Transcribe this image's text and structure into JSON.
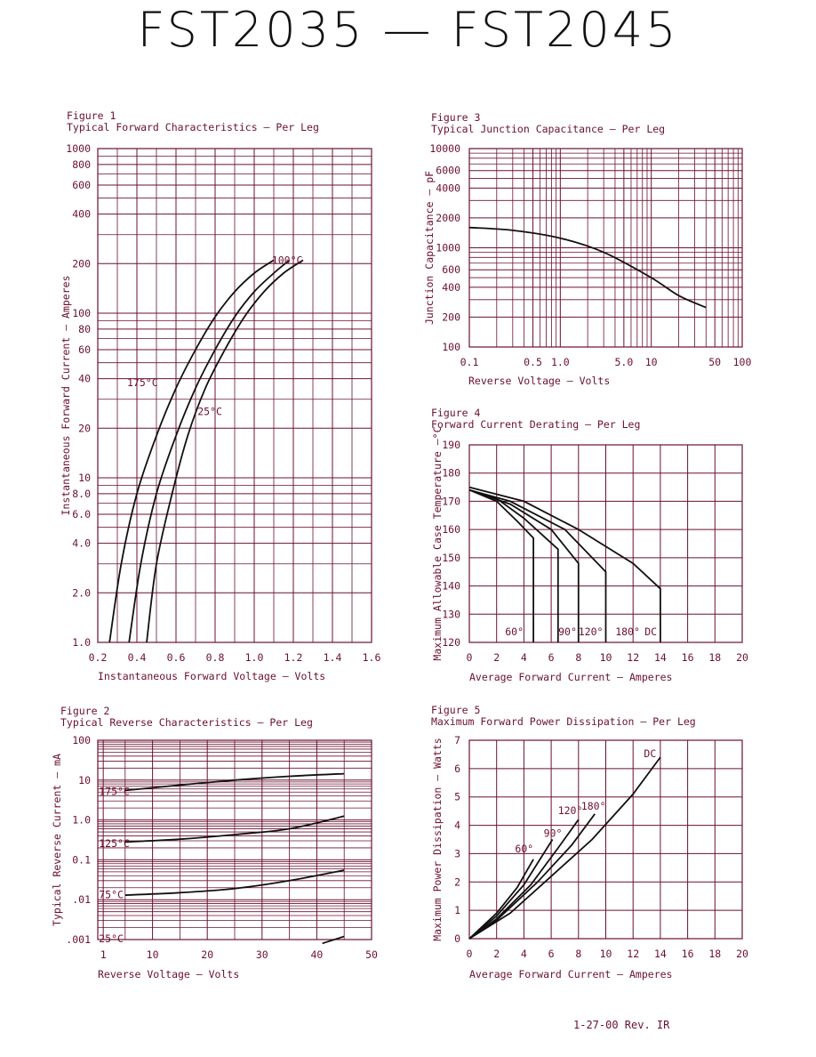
{
  "title": "FST2035  —  FST2045",
  "footer": "1-27-00  Rev. IR",
  "colors": {
    "grid": "#6b1030",
    "curve": "#111111",
    "text": "#6b1030"
  },
  "chart_data": [
    {
      "figure": "Figure 1",
      "title": "Typical Forward Characteristics — Per Leg",
      "type": "line",
      "xlabel": "Instantaneous Forward Voltage — Volts",
      "ylabel": "Instantaneous Forward Current — Amperes",
      "xscale": "linear",
      "yscale": "log",
      "xlim": [
        0.2,
        1.6
      ],
      "ylim": [
        1,
        1000
      ],
      "xticks": [
        0.2,
        0.4,
        0.6,
        0.8,
        1.0,
        1.2,
        1.4,
        1.6
      ],
      "xtick_labels": [
        "0.2",
        "0.4",
        "0.6",
        "0.8",
        "1.0",
        "1.2",
        "1.4",
        "1.6"
      ],
      "yticks": [
        1,
        2,
        4,
        6,
        8,
        10,
        20,
        40,
        60,
        80,
        100,
        200,
        400,
        600,
        800,
        1000
      ],
      "ytick_labels": [
        "1.0",
        "2.0",
        "4.0",
        "6.0",
        "8.0",
        "10",
        "20",
        "40",
        "60",
        "80",
        "100",
        "200",
        "400",
        "600",
        "800",
        "1000"
      ],
      "grid": true,
      "series": [
        {
          "name": "175°C",
          "points": [
            [
              0.26,
              1
            ],
            [
              0.32,
              3
            ],
            [
              0.4,
              8
            ],
            [
              0.5,
              18
            ],
            [
              0.6,
              35
            ],
            [
              0.7,
              60
            ],
            [
              0.8,
              95
            ],
            [
              0.9,
              135
            ],
            [
              1.0,
              175
            ],
            [
              1.1,
              210
            ]
          ]
        },
        {
          "name": "100°C",
          "points": [
            [
              0.36,
              1
            ],
            [
              0.42,
              3
            ],
            [
              0.5,
              8
            ],
            [
              0.6,
              18
            ],
            [
              0.7,
              35
            ],
            [
              0.8,
              60
            ],
            [
              0.9,
              95
            ],
            [
              1.0,
              135
            ],
            [
              1.1,
              175
            ],
            [
              1.18,
              210
            ]
          ]
        },
        {
          "name": "25°C",
          "points": [
            [
              0.45,
              1
            ],
            [
              0.5,
              3
            ],
            [
              0.58,
              8
            ],
            [
              0.66,
              18
            ],
            [
              0.75,
              35
            ],
            [
              0.85,
              60
            ],
            [
              0.95,
              95
            ],
            [
              1.05,
              135
            ],
            [
              1.15,
              175
            ],
            [
              1.25,
              210
            ]
          ]
        }
      ],
      "annotations": [
        "175°C",
        "100°C",
        "25°C"
      ]
    },
    {
      "figure": "Figure 2",
      "title": "Typical Reverse Characteristics — Per Leg",
      "type": "line",
      "xlabel": "Reverse Voltage — Volts",
      "ylabel": "Typical Reverse Current — mA",
      "xscale": "linear",
      "yscale": "log",
      "xlim": [
        0,
        50
      ],
      "ylim": [
        0.001,
        100
      ],
      "xticks": [
        1,
        10,
        20,
        30,
        40,
        50
      ],
      "xtick_labels": [
        "1",
        "10",
        "20",
        "30",
        "40",
        "50"
      ],
      "yticks": [
        0.001,
        0.01,
        0.1,
        1,
        10,
        100
      ],
      "ytick_labels": [
        ".001",
        ".01",
        "0.1",
        "1.0",
        "10",
        "100"
      ],
      "grid": true,
      "series": [
        {
          "name": "175°C",
          "points": [
            [
              5,
              5.5
            ],
            [
              15,
              7.5
            ],
            [
              25,
              10
            ],
            [
              35,
              12.5
            ],
            [
              45,
              14.5
            ]
          ]
        },
        {
          "name": "125°C",
          "points": [
            [
              5,
              0.28
            ],
            [
              15,
              0.33
            ],
            [
              25,
              0.43
            ],
            [
              35,
              0.6
            ],
            [
              45,
              1.25
            ]
          ]
        },
        {
          "name": "75°C",
          "points": [
            [
              5,
              0.013
            ],
            [
              15,
              0.015
            ],
            [
              25,
              0.019
            ],
            [
              35,
              0.03
            ],
            [
              45,
              0.055
            ]
          ]
        },
        {
          "name": "25°C",
          "points": [
            [
              41,
              0.0008
            ],
            [
              45,
              0.0012
            ]
          ]
        }
      ],
      "annotations": [
        "175°C",
        "125°C",
        "75°C",
        "25°C"
      ]
    },
    {
      "figure": "Figure 3",
      "title": "Typical Junction Capacitance — Per Leg",
      "type": "line",
      "xlabel": "Reverse Voltage — Volts",
      "ylabel": "Junction Capacitance — pF",
      "xscale": "log",
      "yscale": "log",
      "xlim": [
        0.1,
        100
      ],
      "ylim": [
        100,
        10000
      ],
      "xticks": [
        0.1,
        0.5,
        1.0,
        5.0,
        10,
        50,
        100
      ],
      "xtick_labels": [
        "0.1",
        "0.5",
        "1.0",
        "5.0",
        "10",
        "50",
        "100"
      ],
      "yticks": [
        100,
        200,
        400,
        600,
        1000,
        2000,
        4000,
        6000,
        10000
      ],
      "ytick_labels": [
        "100",
        "200",
        "400",
        "600",
        "1000",
        "2000",
        "4000",
        "6000",
        "10000"
      ],
      "grid": true,
      "series": [
        {
          "name": "",
          "points": [
            [
              0.1,
              1600
            ],
            [
              0.3,
              1500
            ],
            [
              1,
              1250
            ],
            [
              3,
              900
            ],
            [
              10,
              500
            ],
            [
              20,
              330
            ],
            [
              40,
              250
            ]
          ]
        }
      ]
    },
    {
      "figure": "Figure 4",
      "title": "Forward Current Derating — Per Leg",
      "type": "line",
      "xlabel": "Average Forward Current — Amperes",
      "ylabel": "Maximum Allowable Case Temperature —°C",
      "xscale": "linear",
      "yscale": "linear",
      "xlim": [
        0,
        20
      ],
      "ylim": [
        120,
        190
      ],
      "xticks": [
        0,
        2,
        4,
        6,
        8,
        10,
        12,
        14,
        16,
        18,
        20
      ],
      "xtick_labels": [
        "0",
        "2",
        "4",
        "6",
        "8",
        "10",
        "12",
        "14",
        "16",
        "18",
        "20"
      ],
      "yticks": [
        120,
        130,
        140,
        150,
        160,
        170,
        180,
        190
      ],
      "ytick_labels": [
        "120",
        "130",
        "140",
        "150",
        "160",
        "170",
        "180",
        "190"
      ],
      "grid": true,
      "series": [
        {
          "name": "60°",
          "points": [
            [
              0,
              174
            ],
            [
              2,
              170
            ],
            [
              3.5,
              163
            ],
            [
              4.7,
              157
            ],
            [
              4.7,
              120
            ]
          ]
        },
        {
          "name": "90°",
          "points": [
            [
              0,
              174
            ],
            [
              2,
              171
            ],
            [
              4,
              164
            ],
            [
              6.5,
              153
            ],
            [
              6.5,
              120
            ]
          ]
        },
        {
          "name": "120°",
          "points": [
            [
              0,
              174
            ],
            [
              3,
              169
            ],
            [
              6,
              160
            ],
            [
              8,
              148
            ],
            [
              8,
              120
            ]
          ]
        },
        {
          "name": "180°",
          "points": [
            [
              0,
              174
            ],
            [
              3,
              170
            ],
            [
              7,
              160
            ],
            [
              10,
              145
            ],
            [
              10,
              120
            ]
          ]
        },
        {
          "name": "DC",
          "points": [
            [
              0,
              175
            ],
            [
              4,
              170
            ],
            [
              8,
              160
            ],
            [
              12,
              148
            ],
            [
              14,
              139
            ],
            [
              14,
              120
            ]
          ]
        }
      ],
      "annotations": [
        "60°",
        "90°",
        "120°",
        "180°",
        "DC"
      ]
    },
    {
      "figure": "Figure 5",
      "title": "Maximum Forward Power Dissipation — Per Leg",
      "type": "line",
      "xlabel": "Average Forward Current — Amperes",
      "ylabel": "Maximum Power Dissipation — Watts",
      "xscale": "linear",
      "yscale": "linear",
      "xlim": [
        0,
        20
      ],
      "ylim": [
        0,
        7
      ],
      "xticks": [
        0,
        2,
        4,
        6,
        8,
        10,
        12,
        14,
        16,
        18,
        20
      ],
      "xtick_labels": [
        "0",
        "2",
        "4",
        "6",
        "8",
        "10",
        "12",
        "14",
        "16",
        "18",
        "20"
      ],
      "yticks": [
        0,
        1,
        2,
        3,
        4,
        5,
        6,
        7
      ],
      "ytick_labels": [
        "0",
        "1",
        "2",
        "3",
        "4",
        "5",
        "6",
        "7"
      ],
      "grid": true,
      "series": [
        {
          "name": "60°",
          "points": [
            [
              0,
              0
            ],
            [
              2,
              0.9
            ],
            [
              3.5,
              1.8
            ],
            [
              4.7,
              2.8
            ]
          ]
        },
        {
          "name": "90°",
          "points": [
            [
              0,
              0
            ],
            [
              2,
              0.8
            ],
            [
              4,
              1.9
            ],
            [
              6.1,
              3.5
            ]
          ]
        },
        {
          "name": "120°",
          "points": [
            [
              0,
              0
            ],
            [
              2,
              0.7
            ],
            [
              4.5,
              1.9
            ],
            [
              6.5,
              3.2
            ],
            [
              8,
              4.2
            ]
          ]
        },
        {
          "name": "180°",
          "points": [
            [
              0,
              0
            ],
            [
              2,
              0.65
            ],
            [
              5,
              2
            ],
            [
              7.5,
              3.3
            ],
            [
              9.2,
              4.4
            ]
          ]
        },
        {
          "name": "DC",
          "points": [
            [
              0,
              0
            ],
            [
              3,
              0.9
            ],
            [
              6,
              2.2
            ],
            [
              9,
              3.5
            ],
            [
              12,
              5.1
            ],
            [
              14,
              6.4
            ]
          ]
        }
      ],
      "annotations": [
        "60°",
        "90°",
        "120°",
        "180°",
        "DC"
      ]
    }
  ]
}
